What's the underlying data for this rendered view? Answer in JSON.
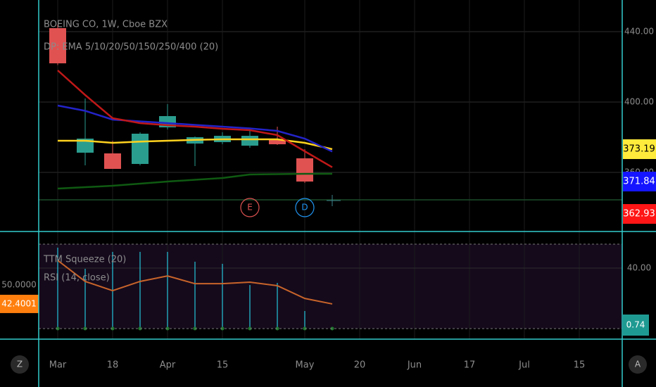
{
  "chart_data": [
    {
      "type": "candlestick",
      "title": "BOEING CO, 1W, Cboe BZX",
      "subtitle": "DP: EMA 5/10/20/50/150/250/400 (20)",
      "categories": [
        "Mar",
        null,
        "18",
        null,
        "Apr",
        null,
        "15",
        null,
        null,
        "May",
        null,
        "20",
        null,
        "Jun",
        null,
        "17",
        null,
        "Jul",
        null,
        "15",
        null,
        null
      ],
      "open": [
        442,
        371.2,
        370.8,
        364.8,
        385.6,
        376.4,
        377.2,
        375.2,
        378.8,
        368,
        null,
        null,
        null,
        null,
        null,
        null,
        null,
        null,
        null,
        null,
        null,
        null
      ],
      "high": [
        444,
        402,
        378,
        382.8,
        398.8,
        380.4,
        382.8,
        385.2,
        386,
        373.2,
        null,
        null,
        null,
        null,
        null,
        null,
        null,
        null,
        null,
        null,
        null,
        null
      ],
      "low": [
        421,
        364,
        362,
        364,
        384.4,
        363.6,
        376,
        374,
        375.6,
        354,
        null,
        null,
        null,
        null,
        null,
        null,
        null,
        null,
        null,
        null,
        null,
        null
      ],
      "close": [
        422,
        379.2,
        362,
        382,
        392,
        380,
        380.8,
        380.8,
        376,
        354.8,
        null,
        null,
        null,
        null,
        null,
        null,
        null,
        null,
        null,
        null,
        null,
        null
      ],
      "up_color": "#2a9d8f",
      "down_color": "#e05252",
      "series": [
        {
          "color": "#ffd21f",
          "label_color": "#ffeb3b",
          "values": [
            378,
            378,
            376.8,
            377.5,
            378,
            378.5,
            378.8,
            378.8,
            378.8,
            376.8,
            373.19,
            null,
            null,
            null,
            null,
            null,
            null,
            null,
            null,
            null,
            null,
            null
          ]
        },
        {
          "color": "#2323c8",
          "label_color": "#1515ff",
          "values": [
            398,
            395,
            390,
            389,
            388,
            387,
            386,
            385,
            383.6,
            379.2,
            371.84,
            null,
            null,
            null,
            null,
            null,
            null,
            null,
            null,
            null,
            null,
            null
          ]
        },
        {
          "color": "#c01818",
          "label_color": "#ff1515",
          "values": [
            418,
            404,
            390.8,
            388,
            386.8,
            386,
            384.8,
            384,
            381.2,
            372,
            362.93,
            null,
            null,
            null,
            null,
            null,
            null,
            null,
            null,
            null,
            null,
            null
          ]
        },
        {
          "color": "#0f5a12",
          "values": [
            350.8,
            351.6,
            352.4,
            353.6,
            354.8,
            355.8,
            356.8,
            358.8,
            359,
            359.2,
            359.2,
            null,
            null,
            null,
            null,
            null,
            null,
            null,
            null,
            null,
            null,
            null
          ]
        }
      ],
      "hlines": [
        344.4
      ],
      "hline_color": "#1d4d2a",
      "events": [
        null,
        null,
        null,
        null,
        null,
        null,
        null,
        "E",
        null,
        "D",
        null,
        null,
        null,
        null,
        null,
        null,
        null,
        null,
        null,
        null,
        null,
        null
      ],
      "event_colors": [
        null,
        null,
        null,
        null,
        null,
        null,
        null,
        "#e05252",
        null,
        "#2196f3",
        null,
        null,
        null,
        null,
        null,
        null,
        null,
        null,
        null,
        null,
        null,
        null
      ],
      "ylim": [
        326.8,
        458
      ],
      "yticks": [
        {
          "value": 440,
          "label": "440.00"
        },
        {
          "value": 400,
          "label": "400.00"
        },
        {
          "value": 360,
          "label": "360.00"
        }
      ],
      "grid": true
    },
    {
      "type": "indicator",
      "series": [
        {
          "name": "TTM Squeeze (20)",
          "color": "#26c6da",
          "label_color": "#1f9a92",
          "values": [
            53.5,
            39.5,
            50.7,
            50.7,
            50.7,
            44.2,
            42.8,
            28.8,
            30.2,
            11.6,
            0.74,
            null,
            null,
            null,
            null,
            null,
            null,
            null,
            null,
            null,
            null,
            null
          ]
        },
        {
          "name": "RSI (14, close)",
          "color": "#c8642a",
          "label_color": "#ff7f0e",
          "axis": "y2",
          "values": [
            59.8,
            51.4,
            47.7,
            51.4,
            53.6,
            50.5,
            50.5,
            51.1,
            49.7,
            44.6,
            42.4001,
            null,
            null,
            null,
            null,
            null,
            null,
            null,
            null,
            null,
            null,
            null
          ]
        }
      ],
      "ylim": [
        -7,
        63.7
      ],
      "yticks": [
        {
          "value": 40,
          "label": "40.00"
        }
      ],
      "y2lim": [
        28.3,
        71.1
      ],
      "y2ticks": [
        {
          "value": 50,
          "label": "50.0000"
        }
      ],
      "grid": true
    },
    {
      "type": "buttons",
      "labels": [
        "Z",
        "A"
      ]
    }
  ]
}
